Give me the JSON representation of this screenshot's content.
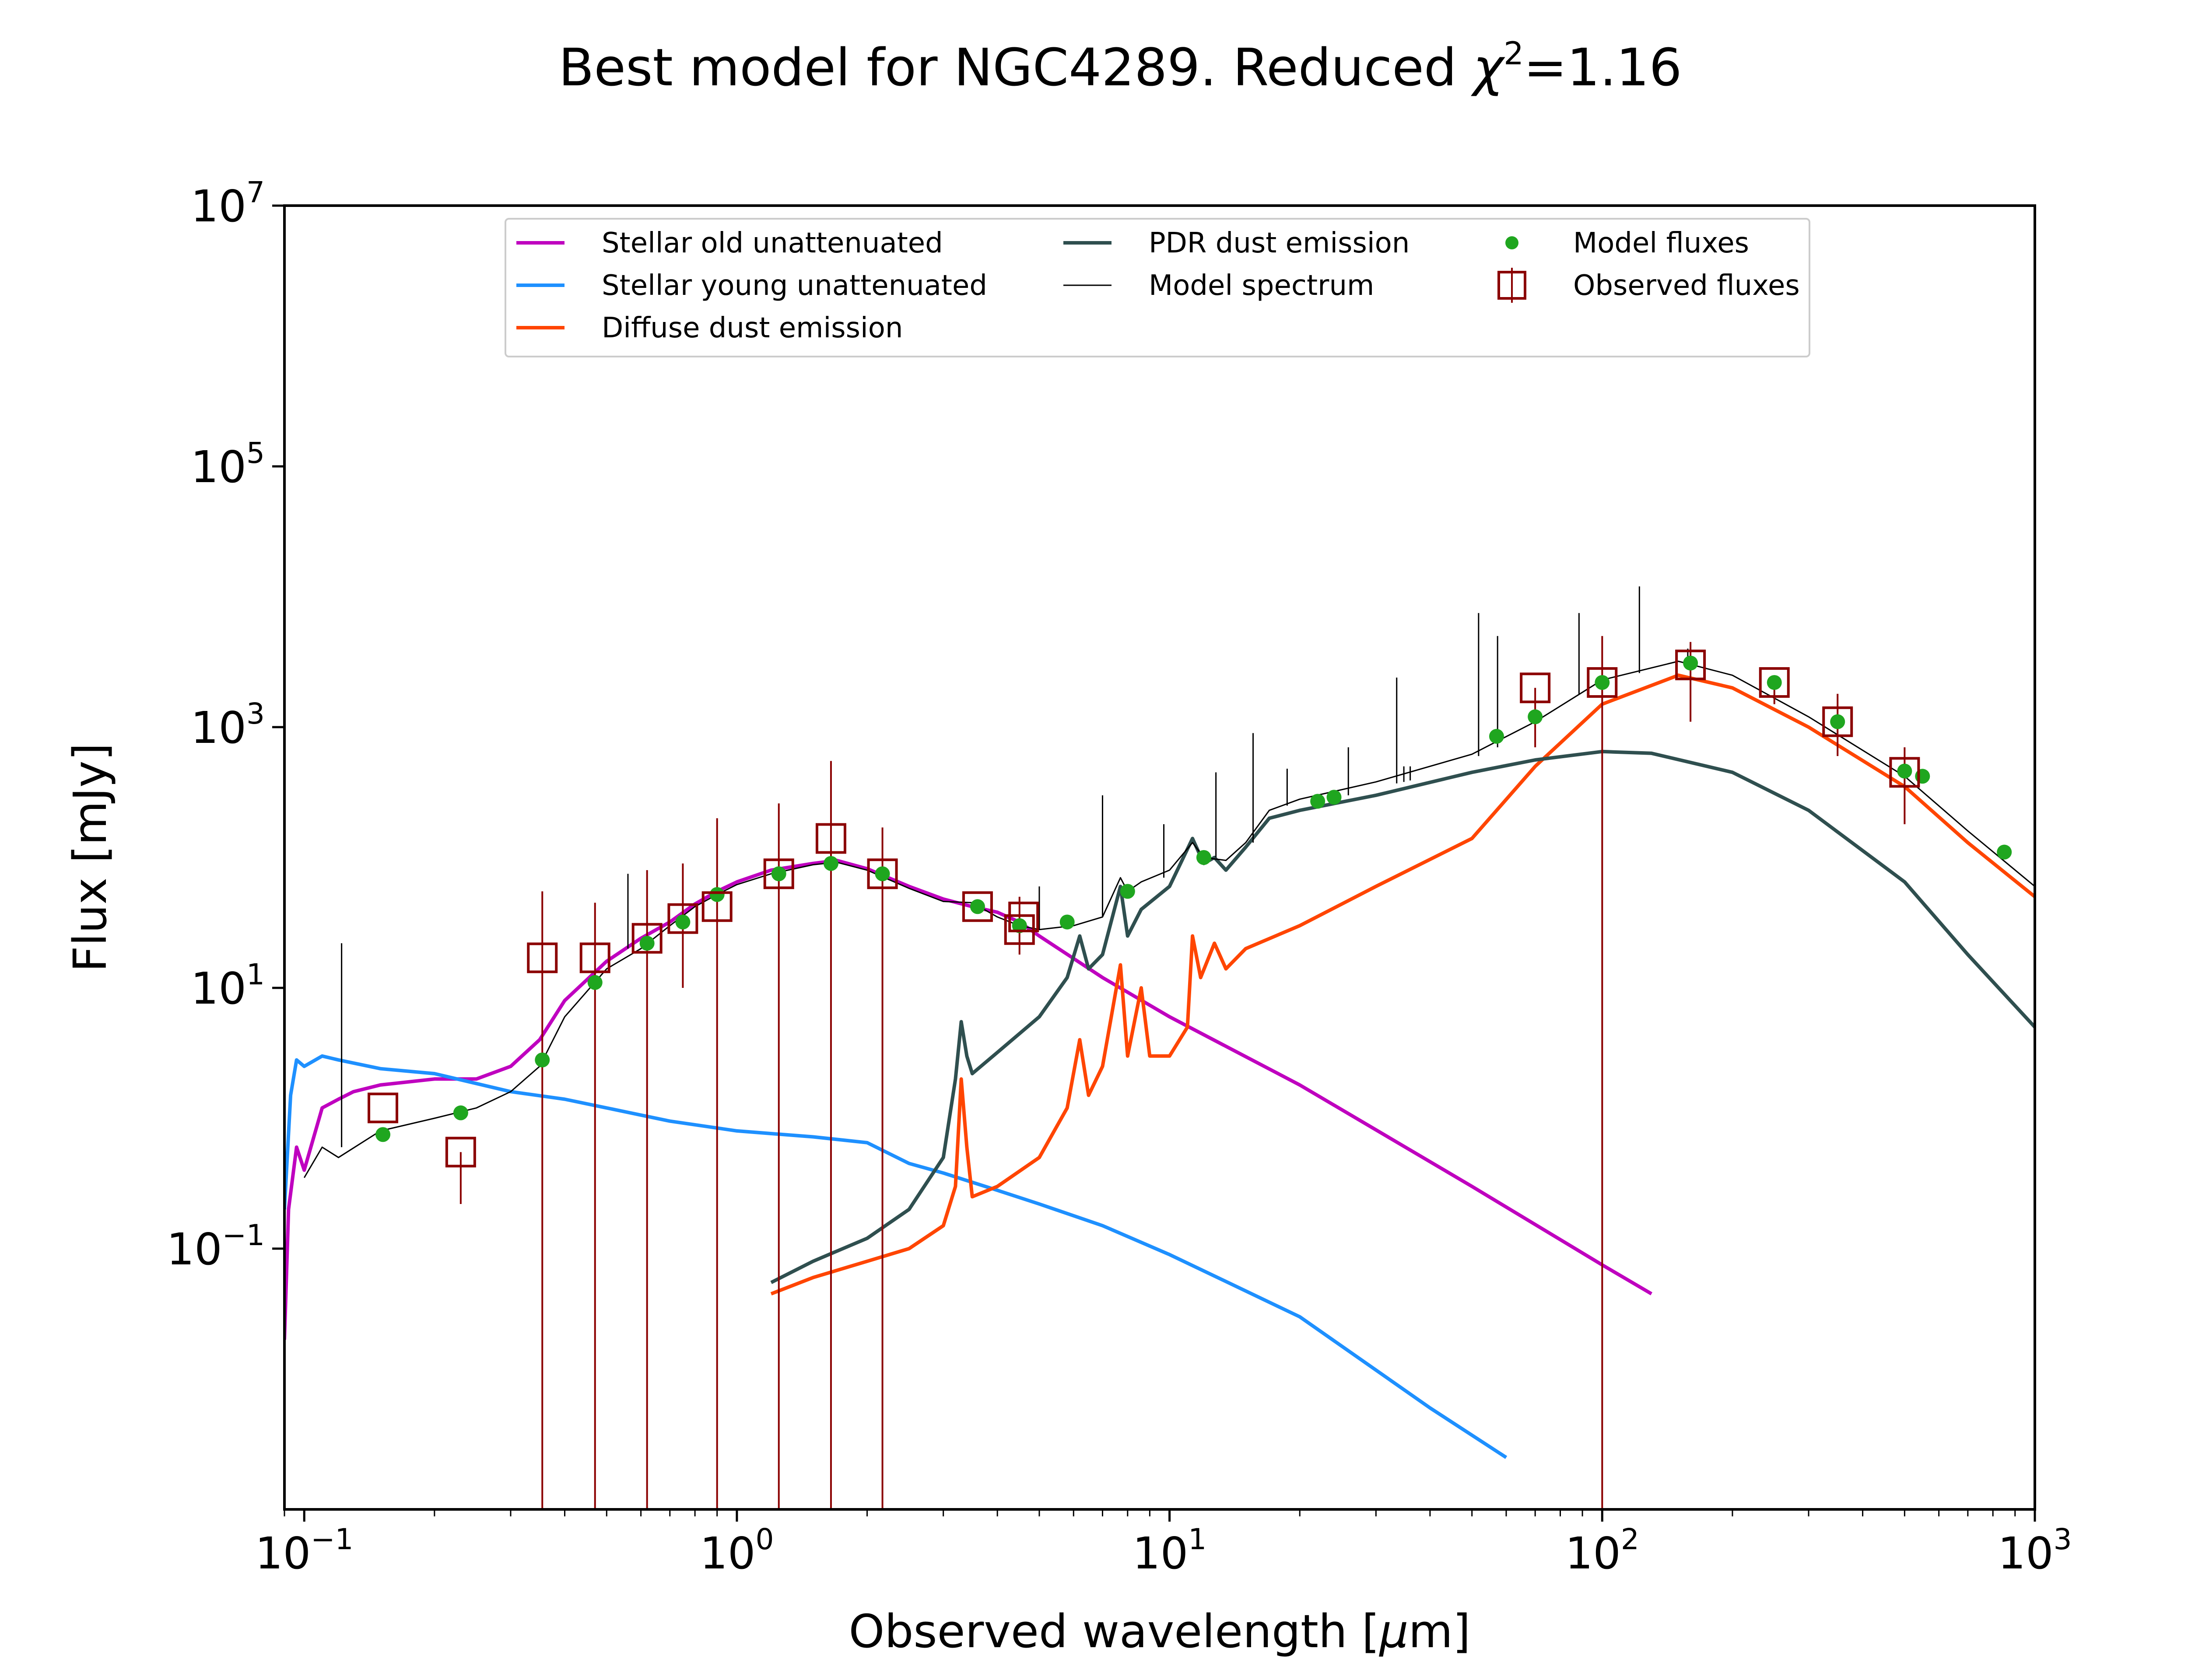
{
  "chart_data": {
    "type": "line",
    "title": "Best model for NGC4289. Reduced",
    "title_chi": "χ",
    "title_chi_exp": "2",
    "title_value": "=1.16",
    "xlabel_pre": "Observed wavelength [",
    "xlabel_mu": "μ",
    "xlabel_post": "m]",
    "ylabel": "Flux [mJy]",
    "xscale": "log",
    "yscale": "log",
    "xlim": [
      0.09,
      1000
    ],
    "ylim": [
      0.001,
      10000000
    ],
    "x_ticks": [
      {
        "base": "10",
        "exp": "−1",
        "value": 0.1
      },
      {
        "base": "10",
        "exp": "0",
        "value": 1
      },
      {
        "base": "10",
        "exp": "1",
        "value": 10
      },
      {
        "base": "10",
        "exp": "2",
        "value": 100
      },
      {
        "base": "10",
        "exp": "3",
        "value": 1000
      }
    ],
    "y_ticks": [
      {
        "base": "10",
        "exp": "−1",
        "value": 0.1
      },
      {
        "base": "10",
        "exp": "1",
        "value": 10
      },
      {
        "base": "10",
        "exp": "3",
        "value": 1000
      },
      {
        "base": "10",
        "exp": "5",
        "value": 100000
      },
      {
        "base": "10",
        "exp": "7",
        "value": 10000000
      }
    ],
    "legend": {
      "location": "top-center",
      "entries": [
        {
          "label": "Stellar old unattenuated",
          "kind": "line",
          "color": "#bf00bf"
        },
        {
          "label": "Stellar young unattenuated",
          "kind": "line",
          "color": "#1e90ff"
        },
        {
          "label": "Diffuse dust emission",
          "kind": "line",
          "color": "#ff4500"
        },
        {
          "label": "PDR dust emission",
          "kind": "line",
          "color": "#2f4f4f"
        },
        {
          "label": "Model spectrum",
          "kind": "thinline",
          "color": "#000000"
        },
        {
          "label": "Model fluxes",
          "kind": "dot",
          "color": "#1fa61f"
        },
        {
          "label": "Observed fluxes",
          "kind": "square",
          "color": "#8b0000"
        }
      ]
    },
    "series": [
      {
        "name": "Stellar old unattenuated",
        "color": "#bf00bf",
        "width": 8,
        "points": [
          [
            0.09,
            0.02
          ],
          [
            0.092,
            0.2
          ],
          [
            0.096,
            0.6
          ],
          [
            0.1,
            0.4
          ],
          [
            0.11,
            1.2
          ],
          [
            0.12,
            1.4
          ],
          [
            0.13,
            1.6
          ],
          [
            0.15,
            1.8
          ],
          [
            0.2,
            2.0
          ],
          [
            0.25,
            2.0
          ],
          [
            0.3,
            2.5
          ],
          [
            0.35,
            4
          ],
          [
            0.4,
            8
          ],
          [
            0.5,
            16
          ],
          [
            0.6,
            24
          ],
          [
            0.7,
            32
          ],
          [
            0.8,
            44
          ],
          [
            0.9,
            55
          ],
          [
            1.0,
            65
          ],
          [
            1.2,
            80
          ],
          [
            1.5,
            90
          ],
          [
            1.7,
            95
          ],
          [
            2.0,
            82
          ],
          [
            2.5,
            60
          ],
          [
            3.0,
            48
          ],
          [
            3.5,
            42
          ],
          [
            4.0,
            38
          ],
          [
            4.5,
            32
          ],
          [
            5.0,
            25
          ],
          [
            7.0,
            12
          ],
          [
            10,
            6
          ],
          [
            20,
            1.8
          ],
          [
            50,
            0.3
          ],
          [
            100,
            0.075
          ],
          [
            130,
            0.045
          ]
        ]
      },
      {
        "name": "Stellar young unattenuated",
        "color": "#1e90ff",
        "width": 8,
        "points": [
          [
            0.09,
            0.2
          ],
          [
            0.093,
            1.5
          ],
          [
            0.096,
            2.8
          ],
          [
            0.1,
            2.5
          ],
          [
            0.11,
            3.0
          ],
          [
            0.12,
            2.8
          ],
          [
            0.15,
            2.4
          ],
          [
            0.2,
            2.2
          ],
          [
            0.3,
            1.6
          ],
          [
            0.4,
            1.4
          ],
          [
            0.5,
            1.2
          ],
          [
            0.7,
            0.95
          ],
          [
            1.0,
            0.8
          ],
          [
            1.5,
            0.72
          ],
          [
            2.0,
            0.65
          ],
          [
            2.5,
            0.45
          ],
          [
            3.0,
            0.38
          ],
          [
            4.0,
            0.28
          ],
          [
            5.0,
            0.22
          ],
          [
            7.0,
            0.15
          ],
          [
            10,
            0.09
          ],
          [
            20,
            0.03
          ],
          [
            40,
            0.006
          ],
          [
            60,
            0.0025
          ]
        ]
      },
      {
        "name": "Diffuse dust emission",
        "color": "#ff4500",
        "width": 8,
        "points": [
          [
            1.2,
            0.045
          ],
          [
            1.5,
            0.06
          ],
          [
            2.0,
            0.08
          ],
          [
            2.5,
            0.1
          ],
          [
            3.0,
            0.15
          ],
          [
            3.2,
            0.3
          ],
          [
            3.3,
            2.0
          ],
          [
            3.4,
            0.6
          ],
          [
            3.5,
            0.25
          ],
          [
            4.0,
            0.3
          ],
          [
            5.0,
            0.5
          ],
          [
            5.8,
            1.2
          ],
          [
            6.2,
            4
          ],
          [
            6.5,
            1.5
          ],
          [
            7.0,
            2.5
          ],
          [
            7.7,
            15
          ],
          [
            8.0,
            3
          ],
          [
            8.6,
            10
          ],
          [
            9.0,
            3
          ],
          [
            10,
            3
          ],
          [
            11,
            5
          ],
          [
            11.3,
            25
          ],
          [
            11.8,
            12
          ],
          [
            12.7,
            22
          ],
          [
            13.5,
            14
          ],
          [
            15,
            20
          ],
          [
            20,
            30
          ],
          [
            30,
            60
          ],
          [
            50,
            140
          ],
          [
            70,
            500
          ],
          [
            100,
            1500
          ],
          [
            150,
            2500
          ],
          [
            200,
            2000
          ],
          [
            300,
            1000
          ],
          [
            500,
            350
          ],
          [
            700,
            130
          ],
          [
            1000,
            50
          ]
        ]
      },
      {
        "name": "PDR dust emission",
        "color": "#2f4f4f",
        "width": 8,
        "points": [
          [
            1.2,
            0.055
          ],
          [
            1.5,
            0.08
          ],
          [
            2.0,
            0.12
          ],
          [
            2.5,
            0.2
          ],
          [
            3.0,
            0.5
          ],
          [
            3.2,
            2.0
          ],
          [
            3.3,
            5.5
          ],
          [
            3.4,
            3.0
          ],
          [
            3.5,
            2.2
          ],
          [
            4.0,
            3.2
          ],
          [
            5.0,
            6
          ],
          [
            5.8,
            12
          ],
          [
            6.2,
            25
          ],
          [
            6.5,
            14
          ],
          [
            7.0,
            18
          ],
          [
            7.7,
            60
          ],
          [
            8.0,
            25
          ],
          [
            8.6,
            40
          ],
          [
            10,
            60
          ],
          [
            11.3,
            140
          ],
          [
            12.0,
            90
          ],
          [
            12.7,
            100
          ],
          [
            13.5,
            80
          ],
          [
            15,
            120
          ],
          [
            17,
            200
          ],
          [
            20,
            230
          ],
          [
            30,
            300
          ],
          [
            50,
            450
          ],
          [
            70,
            560
          ],
          [
            100,
            650
          ],
          [
            130,
            630
          ],
          [
            200,
            450
          ],
          [
            300,
            230
          ],
          [
            500,
            65
          ],
          [
            700,
            18
          ],
          [
            1000,
            5
          ]
        ]
      },
      {
        "name": "Model spectrum",
        "color": "#000000",
        "width": 3,
        "points": [
          [
            0.1,
            0.35
          ],
          [
            0.11,
            0.6
          ],
          [
            0.12,
            0.5
          ],
          [
            0.15,
            0.8
          ],
          [
            0.2,
            1.0
          ],
          [
            0.25,
            1.2
          ],
          [
            0.3,
            1.6
          ],
          [
            0.35,
            2.5
          ],
          [
            0.4,
            6
          ],
          [
            0.5,
            14
          ],
          [
            0.6,
            20
          ],
          [
            0.7,
            30
          ],
          [
            0.8,
            42
          ],
          [
            0.9,
            52
          ],
          [
            1.0,
            62
          ],
          [
            1.2,
            75
          ],
          [
            1.5,
            88
          ],
          [
            1.7,
            92
          ],
          [
            2.0,
            80
          ],
          [
            2.5,
            58
          ],
          [
            3.0,
            46
          ],
          [
            3.5,
            45
          ],
          [
            4.0,
            35
          ],
          [
            4.5,
            30
          ],
          [
            5.0,
            28
          ],
          [
            6.0,
            30
          ],
          [
            7.0,
            35
          ],
          [
            7.7,
            70
          ],
          [
            8.0,
            55
          ],
          [
            8.6,
            65
          ],
          [
            10,
            80
          ],
          [
            11.3,
            130
          ],
          [
            12.0,
            100
          ],
          [
            13.5,
            95
          ],
          [
            15,
            130
          ],
          [
            17,
            230
          ],
          [
            20,
            280
          ],
          [
            30,
            380
          ],
          [
            50,
            620
          ],
          [
            70,
            1100
          ],
          [
            100,
            2300
          ],
          [
            150,
            3200
          ],
          [
            200,
            2500
          ],
          [
            300,
            1200
          ],
          [
            500,
            420
          ],
          [
            700,
            160
          ],
          [
            1000,
            60
          ]
        ]
      }
    ],
    "emission_lines": [
      {
        "x": 0.122,
        "y0": 0.6,
        "y1": 22
      },
      {
        "x": 0.56,
        "y0": 20,
        "y1": 75
      },
      {
        "x": 5.0,
        "y0": 28,
        "y1": 60
      },
      {
        "x": 7.0,
        "y0": 35,
        "y1": 300
      },
      {
        "x": 9.7,
        "y0": 70,
        "y1": 180
      },
      {
        "x": 12.8,
        "y0": 100,
        "y1": 450
      },
      {
        "x": 15.6,
        "y0": 130,
        "y1": 900
      },
      {
        "x": 18.7,
        "y0": 250,
        "y1": 480
      },
      {
        "x": 25.9,
        "y0": 300,
        "y1": 700
      },
      {
        "x": 33.5,
        "y0": 370,
        "y1": 2400
      },
      {
        "x": 34.8,
        "y0": 380,
        "y1": 500
      },
      {
        "x": 36.0,
        "y0": 390,
        "y1": 500
      },
      {
        "x": 51.8,
        "y0": 600,
        "y1": 7500
      },
      {
        "x": 57.3,
        "y0": 700,
        "y1": 5000
      },
      {
        "x": 88.4,
        "y0": 1800,
        "y1": 7500
      },
      {
        "x": 121.9,
        "y0": 2600,
        "y1": 12000
      },
      {
        "x": 157.7,
        "y0": 3100,
        "y1": 4000
      }
    ],
    "model_fluxes": [
      [
        0.152,
        0.75
      ],
      [
        0.23,
        1.1
      ],
      [
        0.355,
        2.8
      ],
      [
        0.47,
        11
      ],
      [
        0.62,
        22
      ],
      [
        0.75,
        32
      ],
      [
        0.9,
        52
      ],
      [
        1.25,
        75
      ],
      [
        1.65,
        90
      ],
      [
        2.17,
        75
      ],
      [
        3.6,
        42
      ],
      [
        4.5,
        30
      ],
      [
        5.8,
        32
      ],
      [
        8.0,
        55
      ],
      [
        12,
        100
      ],
      [
        22,
        270
      ],
      [
        24,
        290
      ],
      [
        57,
        850
      ],
      [
        70,
        1200
      ],
      [
        100,
        2200
      ],
      [
        160,
        3100
      ],
      [
        250,
        2200
      ],
      [
        350,
        1100
      ],
      [
        500,
        460
      ],
      [
        550,
        420
      ],
      [
        850,
        110
      ]
    ],
    "observed_fluxes": [
      {
        "x": 0.152,
        "y": 1.2,
        "lo": null,
        "hi": null
      },
      {
        "x": 0.23,
        "y": 0.55,
        "lo": 0.22,
        "hi": null
      },
      {
        "x": 0.355,
        "y": 17,
        "lo": 0.001,
        "hi": 55
      },
      {
        "x": 0.47,
        "y": 17,
        "lo": 0.001,
        "hi": 45
      },
      {
        "x": 0.62,
        "y": 24,
        "lo": 0.001,
        "hi": 80
      },
      {
        "x": 0.75,
        "y": 34,
        "lo": 10,
        "hi": 90
      },
      {
        "x": 0.9,
        "y": 42,
        "lo": 0.001,
        "hi": 200
      },
      {
        "x": 1.25,
        "y": 75,
        "lo": 0.001,
        "hi": 260
      },
      {
        "x": 1.65,
        "y": 140,
        "lo": 0.001,
        "hi": 550
      },
      {
        "x": 2.17,
        "y": 75,
        "lo": 0.001,
        "hi": 170
      },
      {
        "x": 3.6,
        "y": 42,
        "lo": null,
        "hi": null
      },
      {
        "x": 4.5,
        "y": 28,
        "lo": 18,
        "hi": 50
      },
      {
        "x": 4.6,
        "y": 35,
        "lo": null,
        "hi": null
      },
      {
        "x": 70,
        "y": 2000,
        "lo": 700,
        "hi": null
      },
      {
        "x": 100,
        "y": 2200,
        "lo": 0.001,
        "hi": 5000
      },
      {
        "x": 160,
        "y": 3000,
        "lo": 1100,
        "hi": 4500
      },
      {
        "x": 250,
        "y": 2200,
        "lo": 1500,
        "hi": null
      },
      {
        "x": 350,
        "y": 1100,
        "lo": 600,
        "hi": 1800
      },
      {
        "x": 500,
        "y": 450,
        "lo": 180,
        "hi": 700
      }
    ]
  }
}
